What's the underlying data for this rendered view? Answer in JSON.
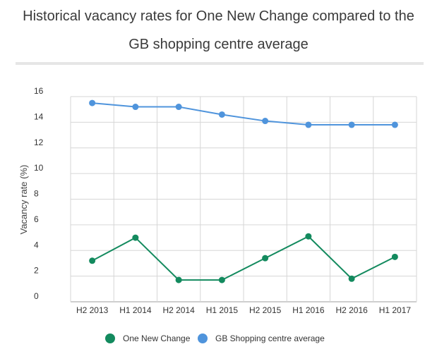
{
  "chart_data": {
    "type": "line",
    "title_line_1": "Historical vacancy rates for One New Change compared to the",
    "title_line_2": "GB shopping centre average",
    "xlabel": "",
    "ylabel": "Vacancy rate (%)",
    "categories": [
      "H2 2013",
      "H1 2014",
      "H2 2014",
      "H1 2015",
      "H2 2015",
      "H1 2016",
      "H2 2016",
      "H1 2017"
    ],
    "ylim": [
      0,
      16
    ],
    "yticks": [
      "0",
      "2",
      "4",
      "6",
      "8",
      "10",
      "12",
      "14",
      "16"
    ],
    "grid": true,
    "legend_position": "bottom",
    "series": [
      {
        "name": "One New Change",
        "color": "#138a5e",
        "values": [
          3.2,
          5.0,
          1.7,
          1.7,
          3.4,
          5.1,
          1.8,
          3.5
        ]
      },
      {
        "name": "GB Shopping centre average",
        "color": "#4f94dc",
        "values": [
          15.5,
          15.2,
          15.2,
          14.6,
          14.1,
          13.8,
          13.8,
          13.8
        ]
      }
    ]
  }
}
